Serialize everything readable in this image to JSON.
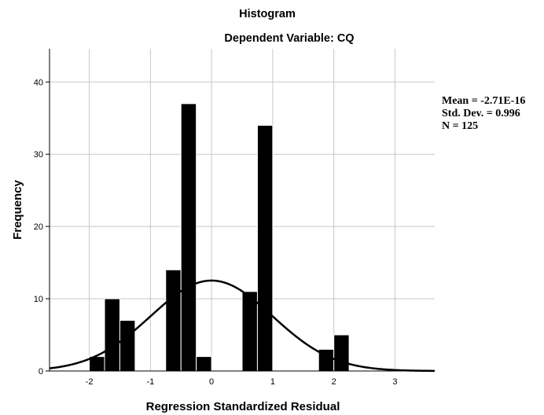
{
  "chart_data": {
    "type": "histogram",
    "title": "Histogram",
    "subtitle": "Dependent Variable: CQ",
    "xlabel": "Regression Standardized Residual",
    "ylabel": "Frequency",
    "xlim": [
      -2.65,
      3.65
    ],
    "ylim": [
      0,
      44.6
    ],
    "x_ticks": [
      -2,
      -1,
      0,
      1,
      2,
      3
    ],
    "y_ticks": [
      0,
      10,
      20,
      30,
      40
    ],
    "grid": "both",
    "bin_width": 0.25,
    "bins": [
      {
        "start": -2.0,
        "count": 2
      },
      {
        "start": -1.75,
        "count": 10
      },
      {
        "start": -1.5,
        "count": 7
      },
      {
        "start": -0.75,
        "count": 14
      },
      {
        "start": -0.5,
        "count": 37
      },
      {
        "start": -0.25,
        "count": 2
      },
      {
        "start": 0.5,
        "count": 11
      },
      {
        "start": 0.75,
        "count": 34
      },
      {
        "start": 1.75,
        "count": 3
      },
      {
        "start": 2.0,
        "count": 5
      }
    ],
    "normal_curve": {
      "mean": 0,
      "sd": 0.996,
      "n": 125
    },
    "stats": {
      "mean": "Mean = -2.71E-16",
      "std_dev": "Std. Dev. = 0.996",
      "n": "N = 125"
    },
    "colors": {
      "bars": "#000000",
      "grid": "#c8c8c8",
      "axis": "#000000",
      "curve": "#000000"
    }
  }
}
